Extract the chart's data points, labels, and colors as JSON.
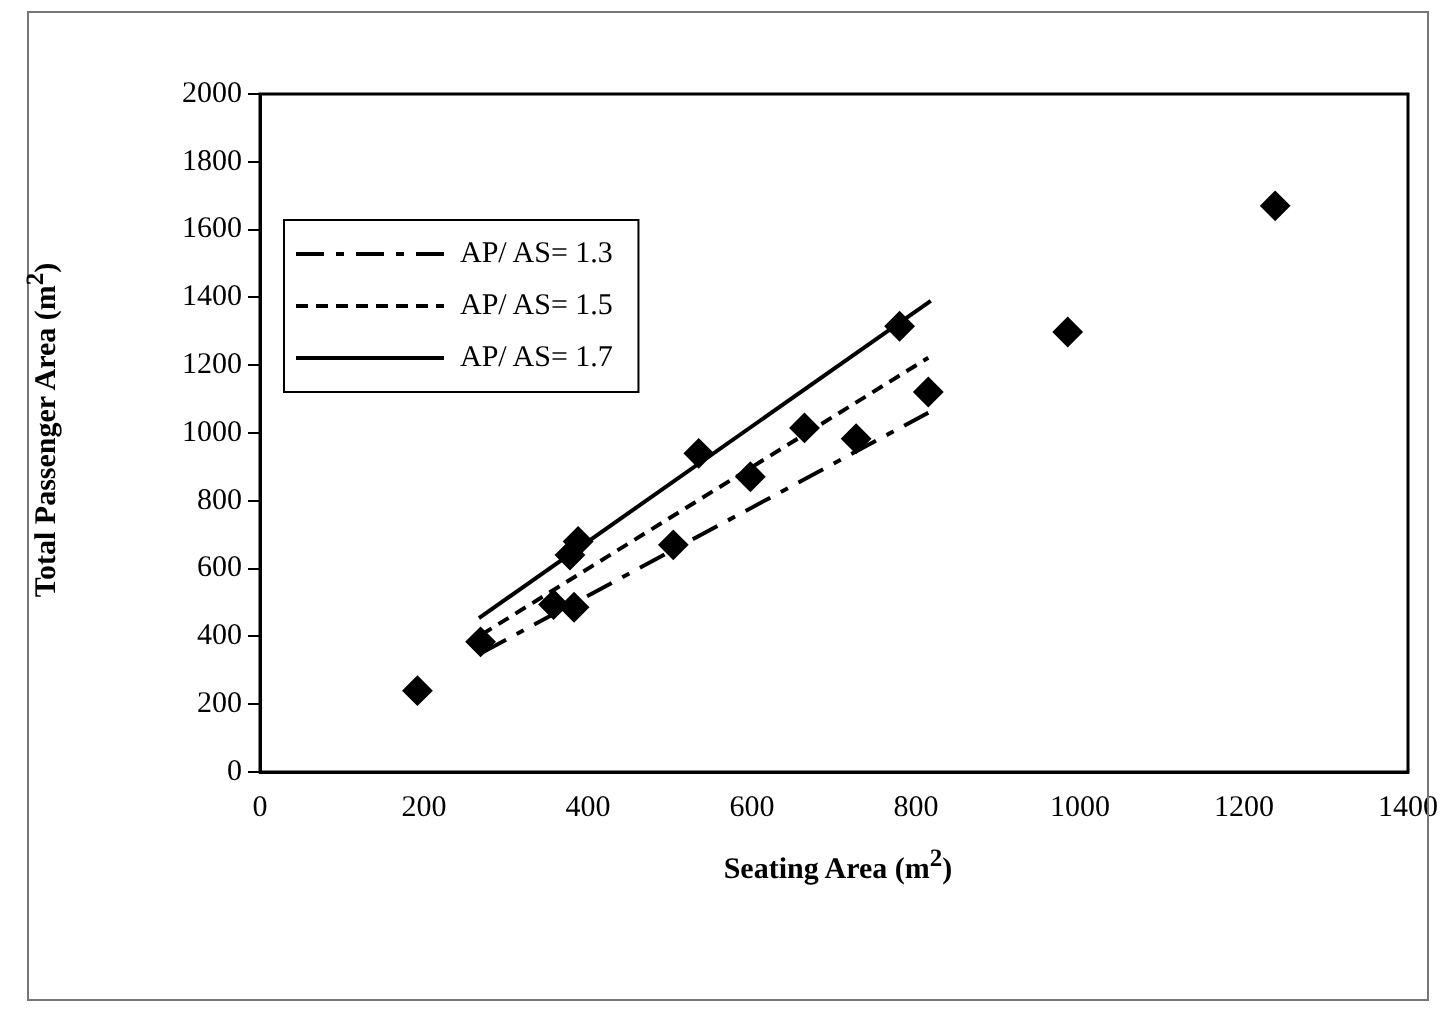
{
  "chart_data": {
    "type": "scatter",
    "xlabel": "Seating Area (m$^{2}$)",
    "ylabel": "Total Passenger Area (m$^{2}$)",
    "xlim": [
      0,
      1400
    ],
    "xticks": [
      0,
      200,
      400,
      600,
      800,
      1000,
      1200,
      1400
    ],
    "ylim": [
      0,
      2000
    ],
    "yticks": [
      0,
      200,
      400,
      600,
      800,
      1000,
      1200,
      1400,
      1600,
      1800,
      2000
    ],
    "grid": false,
    "legend": "top left",
    "marker": "diamond",
    "series": [
      {
        "color": "#000000",
        "x": [
          192,
          269,
          358,
          383,
          378,
          388,
          504,
          535,
          598,
          664,
          727,
          780,
          815,
          985,
          1238
        ],
        "values": [
          240,
          384,
          494,
          486,
          640,
          680,
          670,
          940,
          871,
          1015,
          983,
          1315,
          1121,
          1298,
          1670
        ]
      },
      {
        "type": "line",
        "name": "AP/ AS= 1.3",
        "color": "#000000",
        "line_style": "dashed",
        "marker": "none",
        "x": [
          270,
          815
        ],
        "values": [
          351,
          1060
        ]
      },
      {
        "type": "line",
        "name": "AP/ AS= 1.5",
        "color": "#000000",
        "line_style": "dotted",
        "marker": "none",
        "x": [
          270,
          815
        ],
        "values": [
          405,
          1222
        ]
      },
      {
        "type": "line",
        "name": "AP/ AS= 1.7",
        "color": "#000000",
        "line_style": "solid",
        "marker": "none",
        "x": [
          267,
          818
        ],
        "values": [
          454,
          1390
        ]
      }
    ]
  }
}
